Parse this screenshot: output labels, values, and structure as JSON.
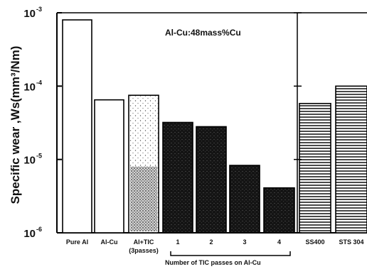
{
  "chart_data": {
    "type": "bar",
    "y_scale": "log",
    "ylim": [
      1e-06,
      0.001
    ],
    "ylabel": "Specific wear ,Ws(mm³/Nm)",
    "y_ticks": [
      {
        "value": 0.001,
        "base": "10",
        "exp": "-3"
      },
      {
        "value": 0.0001,
        "base": "10",
        "exp": "-4"
      },
      {
        "value": 1e-05,
        "base": "10",
        "exp": "-5"
      },
      {
        "value": 1e-06,
        "base": "10",
        "exp": "-6"
      }
    ],
    "annotation": "Al-Cu:48mass%Cu",
    "xlabel": "Number of TIC passes on Al-Cu",
    "categories": [
      "Pure Al",
      "Al-Cu",
      "Al+TIC",
      "1",
      "2",
      "3",
      "4",
      "SS400",
      "STS 304"
    ],
    "category_sublabels": [
      "",
      "",
      "(3passes)",
      "",
      "",
      "",
      "",
      "",
      ""
    ],
    "values": [
      0.0008,
      6.5e-05,
      7.5e-05,
      3.2e-05,
      2.8e-05,
      8.3e-06,
      4.1e-06,
      5.8e-05,
      0.0001
    ],
    "fills": [
      "white",
      "white",
      "stippled",
      "dark",
      "dark",
      "dark",
      "dark",
      "striped",
      "striped"
    ]
  }
}
